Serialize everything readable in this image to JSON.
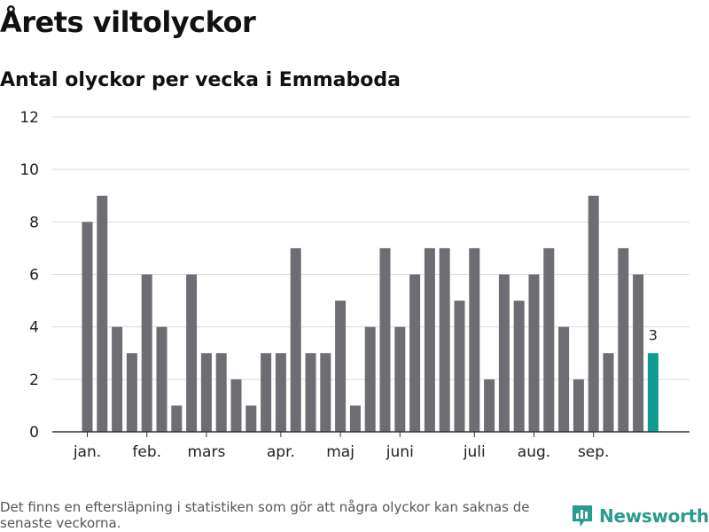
{
  "title": "Årets viltolyckor",
  "subtitle": "Antal olyckor per vecka i Emmaboda",
  "footnote": "Det finns en eftersläpning i statistiken som gör att några olyckor kan saknas de senaste veckorna.",
  "brand": {
    "name": "Newsworthy",
    "icon": "newsworthy-logo-icon",
    "color": "#2a9b8c"
  },
  "chart_data": {
    "type": "bar",
    "ylim": [
      0,
      12
    ],
    "y_ticks": [
      "0",
      "2",
      "4",
      "6",
      "8",
      "10",
      "12"
    ],
    "x_tick_labels": [
      {
        "label": "jan.",
        "week": 1
      },
      {
        "label": "feb.",
        "week": 5
      },
      {
        "label": "mars",
        "week": 9
      },
      {
        "label": "apr.",
        "week": 14
      },
      {
        "label": "maj",
        "week": 18
      },
      {
        "label": "juni",
        "week": 22
      },
      {
        "label": "juli",
        "week": 27
      },
      {
        "label": "aug.",
        "week": 31
      },
      {
        "label": "sep.",
        "week": 35
      }
    ],
    "weeks": [
      1,
      2,
      3,
      4,
      5,
      6,
      7,
      8,
      9,
      10,
      11,
      12,
      13,
      14,
      15,
      16,
      17,
      18,
      19,
      20,
      21,
      22,
      23,
      24,
      25,
      26,
      27,
      28,
      29,
      30,
      31,
      32,
      33,
      34,
      35,
      36,
      37,
      38,
      39
    ],
    "values": [
      8,
      9,
      4,
      3,
      6,
      4,
      1,
      6,
      3,
      3,
      2,
      1,
      3,
      3,
      7,
      3,
      3,
      5,
      1,
      4,
      7,
      4,
      6,
      7,
      7,
      5,
      7,
      2,
      6,
      5,
      6,
      7,
      4,
      2,
      9,
      3,
      7,
      6,
      3
    ],
    "bar_color": "#6e6d73",
    "highlight_color": "#0d9c8f",
    "highlight_last": true,
    "highlight_label": "3",
    "grid": true
  }
}
